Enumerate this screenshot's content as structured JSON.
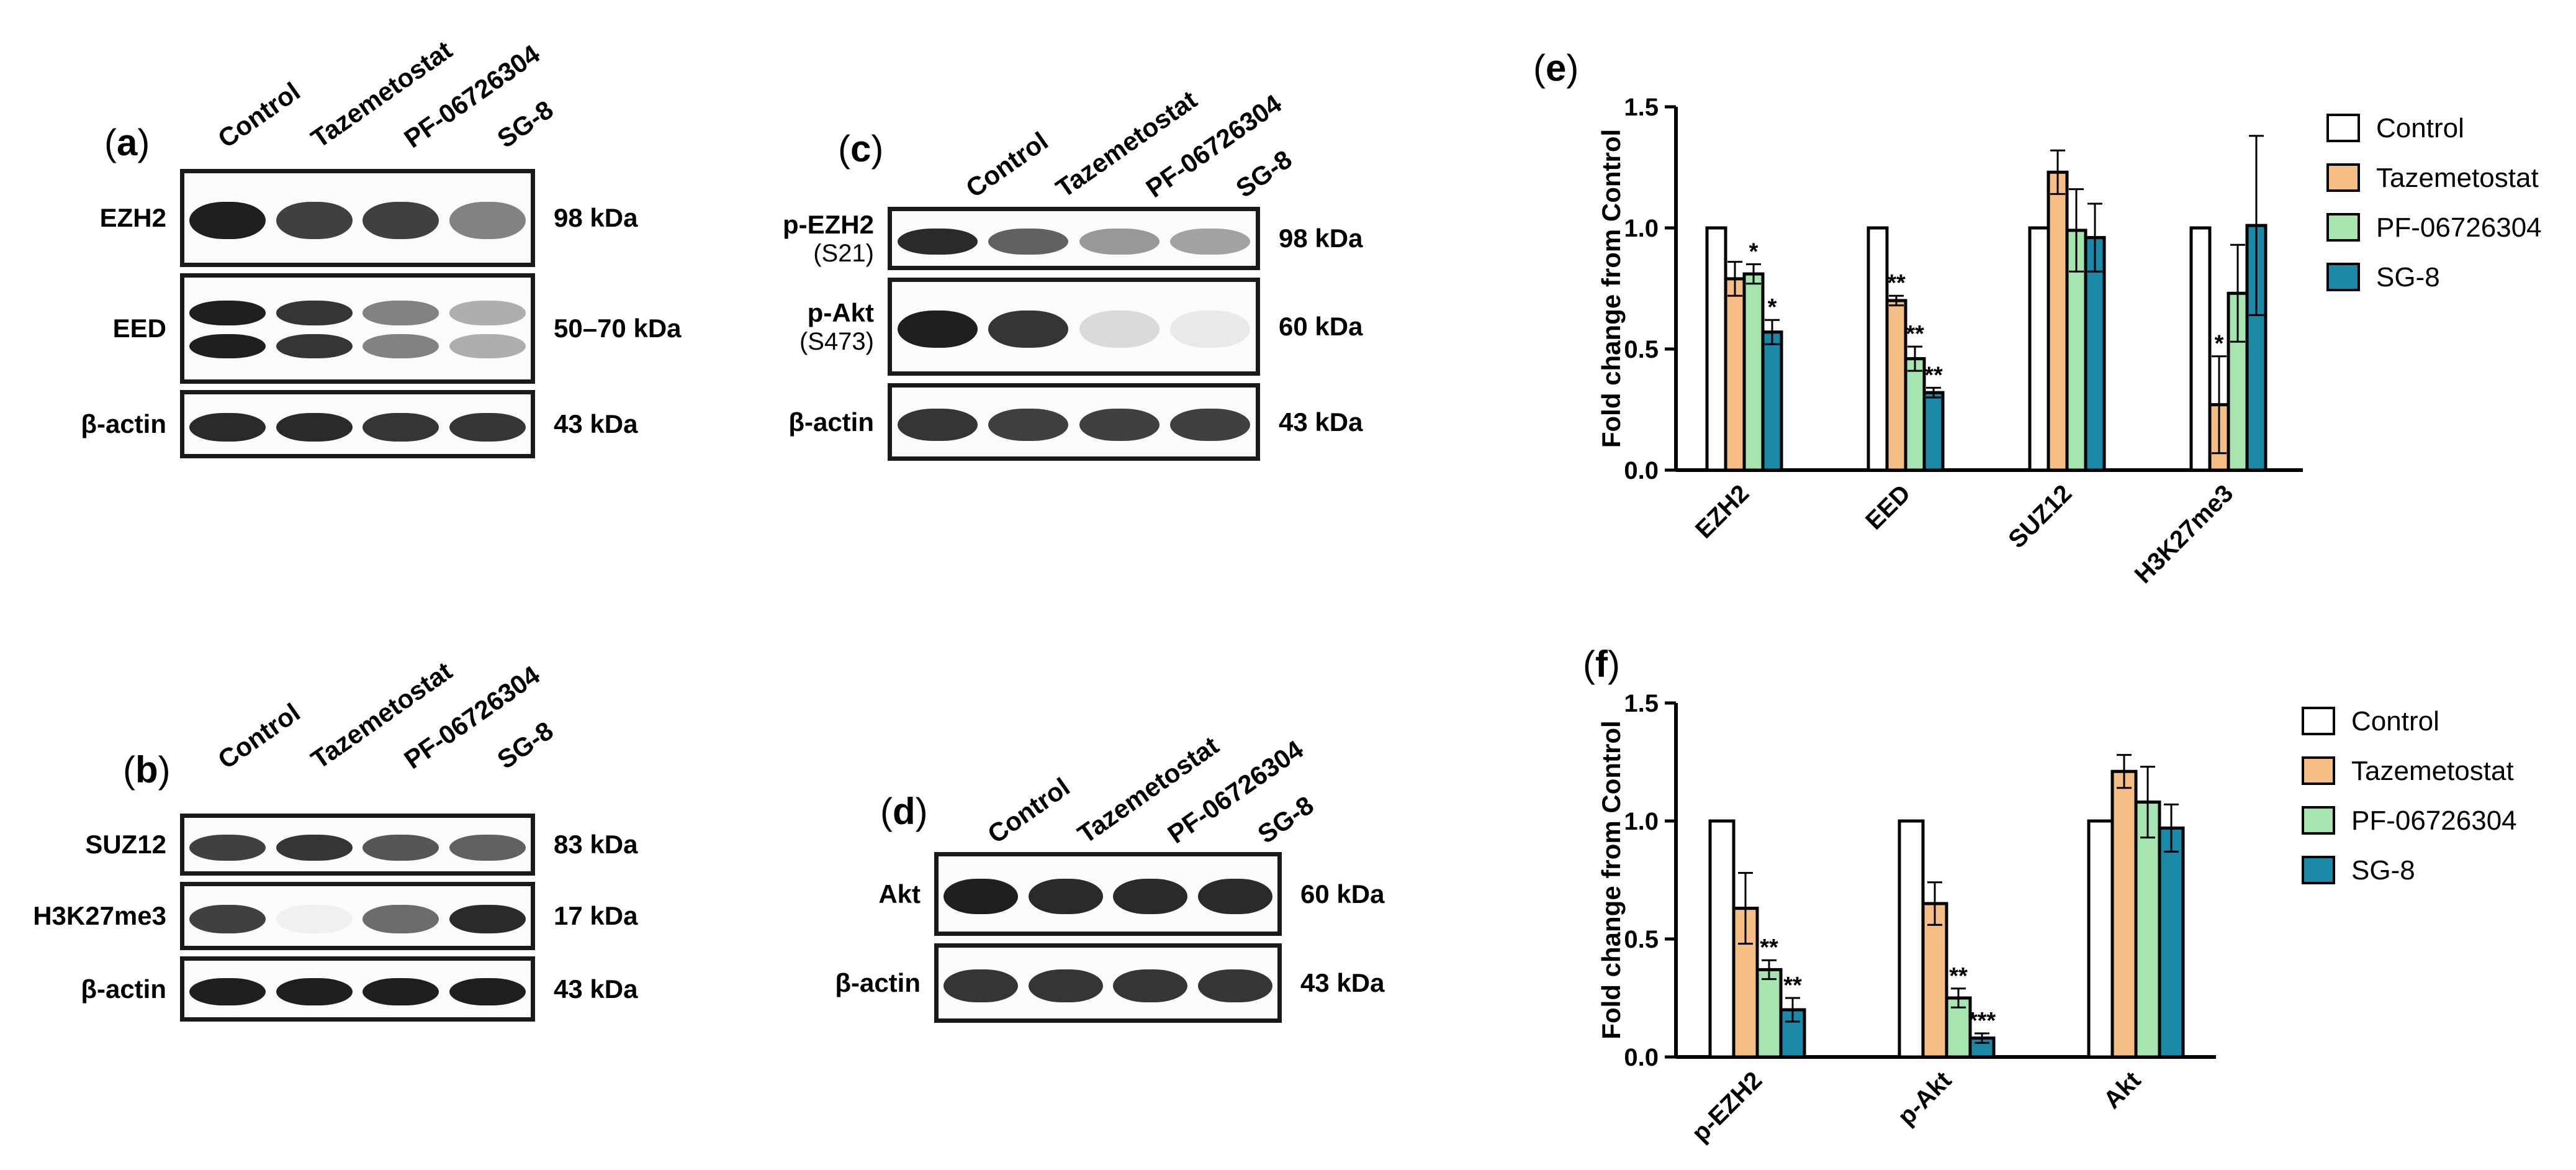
{
  "lanes": [
    "Control",
    "Tazemetostat",
    "PF-06726304",
    "SG-8"
  ],
  "panel_a": {
    "letter": "a",
    "rows": [
      {
        "label": "EZH2",
        "kda": "98 kDa",
        "intensity": [
          1.0,
          0.85,
          0.85,
          0.55
        ]
      },
      {
        "label": "EED",
        "kda": "50–70 kDa",
        "intensity": [
          1.0,
          0.9,
          0.55,
          0.35
        ]
      },
      {
        "label": "β-actin",
        "kda": "43 kDa",
        "intensity": [
          0.95,
          0.95,
          0.9,
          0.9
        ]
      }
    ]
  },
  "panel_b": {
    "letter": "b",
    "rows": [
      {
        "label": "SUZ12",
        "kda": "83 kDa",
        "intensity": [
          0.85,
          0.9,
          0.75,
          0.7
        ]
      },
      {
        "label": "H3K27me3",
        "kda": "17 kDa",
        "intensity": [
          0.85,
          0.05,
          0.65,
          0.95
        ]
      },
      {
        "label": "β-actin",
        "kda": "43 kDa",
        "intensity": [
          1.0,
          1.0,
          1.0,
          1.0
        ]
      }
    ]
  },
  "panel_c": {
    "letter": "c",
    "rows": [
      {
        "label": "p-EZH2",
        "sub": "(S21)",
        "kda": "98 kDa",
        "intensity": [
          0.95,
          0.7,
          0.45,
          0.4
        ]
      },
      {
        "label": "p-Akt",
        "sub": "(S473)",
        "kda": "60 kDa",
        "intensity": [
          1.0,
          0.9,
          0.15,
          0.08
        ]
      },
      {
        "label": "β-actin",
        "kda": "43 kDa",
        "intensity": [
          0.9,
          0.85,
          0.85,
          0.85
        ]
      }
    ]
  },
  "panel_d": {
    "letter": "d",
    "rows": [
      {
        "label": "Akt",
        "kda": "60 kDa",
        "intensity": [
          1.0,
          0.95,
          0.95,
          0.95
        ]
      },
      {
        "label": "β-actin",
        "kda": "43 kDa",
        "intensity": [
          0.9,
          0.9,
          0.9,
          0.9
        ]
      }
    ]
  },
  "colors": {
    "Control": "#ffffff",
    "Tazemetostat": "#f6be84",
    "PF-06726304": "#a6e5b0",
    "SG-8": "#1a89a8"
  },
  "chart_data": [
    {
      "panel": "e",
      "type": "bar",
      "ylabel": "Fold change from Control",
      "ylim": [
        0,
        1.5
      ],
      "yticks": [
        "0.0",
        "0.5",
        "1.0",
        "1.5"
      ],
      "categories": [
        "EZH2",
        "EED",
        "SUZ12",
        "H3K27me3"
      ],
      "series": [
        {
          "name": "Control",
          "values": [
            1.0,
            1.0,
            1.0,
            1.0
          ],
          "errors": [
            0,
            0,
            0,
            0
          ],
          "sig": [
            "",
            "",
            "",
            ""
          ]
        },
        {
          "name": "Tazemetostat",
          "values": [
            0.79,
            0.7,
            1.23,
            0.27
          ],
          "errors": [
            0.07,
            0.02,
            0.09,
            0.2
          ],
          "sig": [
            "",
            "**",
            "",
            "*"
          ]
        },
        {
          "name": "PF-06726304",
          "values": [
            0.81,
            0.46,
            0.99,
            0.73
          ],
          "errors": [
            0.04,
            0.05,
            0.17,
            0.2
          ],
          "sig": [
            "*",
            "**",
            "",
            ""
          ]
        },
        {
          "name": "SG-8",
          "values": [
            0.57,
            0.32,
            0.96,
            1.01
          ],
          "errors": [
            0.05,
            0.02,
            0.14,
            0.37
          ],
          "sig": [
            "*",
            "**",
            "",
            ""
          ]
        }
      ],
      "legend": "right"
    },
    {
      "panel": "f",
      "type": "bar",
      "ylabel": "Fold change from Control",
      "ylim": [
        0,
        1.5
      ],
      "yticks": [
        "0.0",
        "0.5",
        "1.0",
        "1.5"
      ],
      "categories": [
        "p-EZH2",
        "p-Akt",
        "Akt"
      ],
      "series": [
        {
          "name": "Control",
          "values": [
            1.0,
            1.0,
            1.0
          ],
          "errors": [
            0,
            0,
            0
          ],
          "sig": [
            "",
            "",
            ""
          ]
        },
        {
          "name": "Tazemetostat",
          "values": [
            0.63,
            0.65,
            1.21
          ],
          "errors": [
            0.15,
            0.09,
            0.07
          ],
          "sig": [
            "",
            "",
            ""
          ]
        },
        {
          "name": "PF-06726304",
          "values": [
            0.37,
            0.25,
            1.08
          ],
          "errors": [
            0.04,
            0.04,
            0.15
          ],
          "sig": [
            "**",
            "**",
            ""
          ]
        },
        {
          "name": "SG-8",
          "values": [
            0.2,
            0.08,
            0.97
          ],
          "errors": [
            0.05,
            0.02,
            0.1
          ],
          "sig": [
            "**",
            "***",
            ""
          ]
        }
      ],
      "legend": "right"
    }
  ]
}
